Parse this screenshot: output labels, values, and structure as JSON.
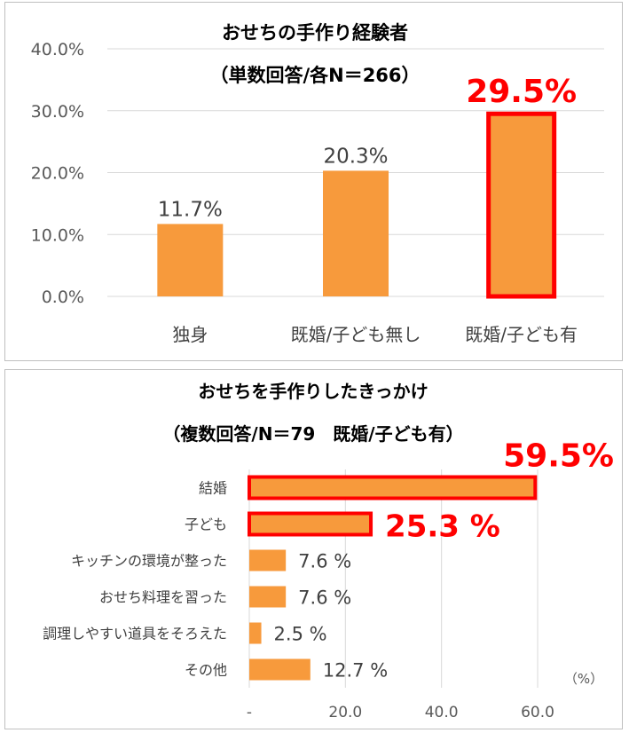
{
  "chart_data": [
    {
      "type": "bar",
      "title": "おせちの手作り経験者",
      "subtitle": "（単数回答/各N＝266）",
      "categories": [
        "独身",
        "既婚/子ども無し",
        "既婚/子ども有"
      ],
      "values": [
        11.7,
        20.3,
        29.5
      ],
      "value_labels": [
        "11.7%",
        "20.3%",
        "29.5%"
      ],
      "highlight_index": 2,
      "ylim": [
        0,
        40
      ],
      "y_ticks": [
        0,
        10,
        20,
        30,
        40
      ],
      "y_tick_labels": [
        "0.0%",
        "10.0%",
        "20.0%",
        "30.0%",
        "40.0%"
      ],
      "grid": true,
      "bar_color": "#f79a3c",
      "highlight_color": "#ff0000"
    },
    {
      "type": "bar",
      "orientation": "horizontal",
      "title": "おせちを手作りしたきっかけ",
      "subtitle": "（複数回答/N＝79　既婚/子ども有）",
      "categories": [
        "結婚",
        "子ども",
        "キッチンの環境が整った",
        "おせち料理を習った",
        "調理しやすい道具をそろえた",
        "その他"
      ],
      "values": [
        59.5,
        25.3,
        7.6,
        7.6,
        2.5,
        12.7
      ],
      "value_labels": [
        "59.5%",
        "25.3 %",
        "7.6 %",
        "7.6 %",
        "2.5 %",
        "12.7 %"
      ],
      "highlight_indices": [
        0,
        1
      ],
      "xlim": [
        0,
        60
      ],
      "x_ticks": [
        0,
        20,
        40,
        60
      ],
      "x_tick_labels": [
        "-",
        "20.0",
        "40.0",
        "60.0"
      ],
      "unit_label": "（%）",
      "grid": true,
      "bar_color": "#f79a3c",
      "highlight_color": "#ff0000"
    }
  ]
}
